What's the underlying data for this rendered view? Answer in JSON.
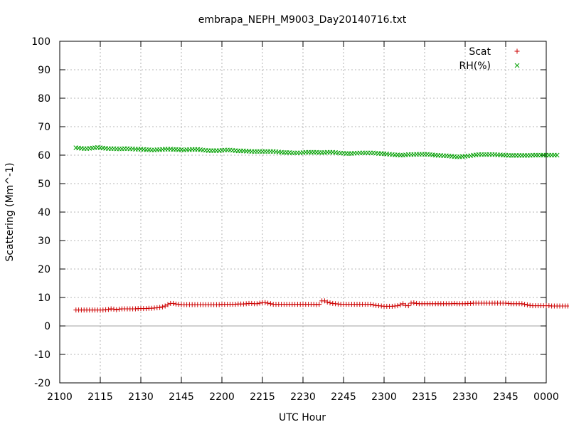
{
  "chart_data": {
    "type": "scatter",
    "title": "embrapa_NEPH_M9003_Day20140716.txt",
    "xlabel": "UTC Hour",
    "ylabel": "Scattering (Mm^-1)",
    "xlim": [
      0,
      180
    ],
    "ylim": [
      -20,
      100
    ],
    "x_ticks": [
      0,
      15,
      30,
      45,
      60,
      75,
      90,
      105,
      120,
      135,
      150,
      165,
      180
    ],
    "x_tick_labels": [
      "2100",
      "2115",
      "2130",
      "2145",
      "2200",
      "2215",
      "2230",
      "2245",
      "2300",
      "2315",
      "2330",
      "2345",
      "0000"
    ],
    "y_ticks": [
      -20,
      -10,
      0,
      10,
      20,
      30,
      40,
      50,
      60,
      70,
      80,
      90,
      100
    ],
    "grid": true,
    "zero_line": true,
    "legend_position": "top-right",
    "series": [
      {
        "name": "Scat",
        "marker": "plus",
        "color": "#cc0000",
        "x_start": 6,
        "x_step": 1,
        "values": [
          5.6,
          5.6,
          5.6,
          5.6,
          5.6,
          5.6,
          5.6,
          5.6,
          5.6,
          5.6,
          5.6,
          5.7,
          5.8,
          6.0,
          5.9,
          5.7,
          5.9,
          6.0,
          6.0,
          6.0,
          6.0,
          6.0,
          6.0,
          6.1,
          6.1,
          6.1,
          6.1,
          6.2,
          6.2,
          6.3,
          6.4,
          6.5,
          6.7,
          7.0,
          7.5,
          7.9,
          7.9,
          7.7,
          7.6,
          7.5,
          7.5,
          7.5,
          7.5,
          7.5,
          7.5,
          7.5,
          7.5,
          7.5,
          7.5,
          7.5,
          7.5,
          7.5,
          7.5,
          7.5,
          7.6,
          7.6,
          7.6,
          7.6,
          7.6,
          7.6,
          7.7,
          7.7,
          7.7,
          7.8,
          7.9,
          7.9,
          7.8,
          7.8,
          8.0,
          8.2,
          8.2,
          8.0,
          7.8,
          7.6,
          7.6,
          7.6,
          7.6,
          7.6,
          7.6,
          7.6,
          7.6,
          7.6,
          7.6,
          7.6,
          7.6,
          7.6,
          7.6,
          7.6,
          7.6,
          7.5,
          7.6,
          8.8,
          8.8,
          8.4,
          8.1,
          7.9,
          7.8,
          7.7,
          7.6,
          7.6,
          7.6,
          7.6,
          7.6,
          7.6,
          7.6,
          7.6,
          7.6,
          7.6,
          7.6,
          7.6,
          7.4,
          7.2,
          7.1,
          7.0,
          6.9,
          6.9,
          6.9,
          6.9,
          7.0,
          7.1,
          7.4,
          7.8,
          7.2,
          7.1,
          8.0,
          8.1,
          7.9,
          7.8,
          7.8,
          7.8,
          7.8,
          7.8,
          7.8,
          7.8,
          7.8,
          7.8,
          7.8,
          7.8,
          7.8,
          7.8,
          7.9,
          7.8,
          7.8,
          7.8,
          7.8,
          7.9,
          7.9,
          8.0,
          8.0,
          8.0,
          8.0,
          8.0,
          8.0,
          8.0,
          8.0,
          8.0,
          8.0,
          8.0,
          8.0,
          8.0,
          7.9,
          7.8,
          7.8,
          7.8,
          7.8,
          7.8,
          7.6,
          7.4,
          7.2,
          7.1,
          7.1,
          7.1,
          7.1,
          7.1,
          7.1,
          7.1,
          7.0,
          7.0,
          7.0,
          7.0,
          7.0,
          7.0,
          7.0
        ]
      },
      {
        "name": "RH(%)",
        "marker": "cross",
        "color": "#00a000",
        "x_start": 6,
        "x_step": 1,
        "values": [
          62.6,
          62.5,
          62.4,
          62.3,
          62.3,
          62.4,
          62.5,
          62.6,
          62.7,
          62.6,
          62.5,
          62.4,
          62.3,
          62.3,
          62.3,
          62.2,
          62.2,
          62.2,
          62.3,
          62.3,
          62.2,
          62.2,
          62.1,
          62.1,
          62.1,
          62.0,
          61.9,
          61.9,
          61.8,
          61.8,
          61.9,
          61.9,
          62.0,
          62.1,
          62.1,
          62.1,
          62.0,
          62.0,
          61.9,
          61.9,
          61.8,
          61.9,
          61.9,
          62.0,
          62.0,
          62.0,
          61.9,
          61.8,
          61.7,
          61.6,
          61.6,
          61.6,
          61.6,
          61.6,
          61.7,
          61.8,
          61.8,
          61.8,
          61.7,
          61.6,
          61.5,
          61.5,
          61.5,
          61.4,
          61.4,
          61.3,
          61.3,
          61.3,
          61.3,
          61.3,
          61.3,
          61.3,
          61.3,
          61.3,
          61.2,
          61.1,
          61.0,
          60.9,
          60.9,
          60.9,
          60.8,
          60.8,
          60.8,
          60.8,
          60.9,
          61.0,
          61.0,
          61.0,
          61.0,
          61.0,
          60.9,
          60.9,
          60.9,
          61.0,
          61.0,
          61.0,
          60.9,
          60.8,
          60.7,
          60.7,
          60.6,
          60.6,
          60.6,
          60.7,
          60.7,
          60.8,
          60.8,
          60.8,
          60.8,
          60.8,
          60.8,
          60.7,
          60.6,
          60.6,
          60.5,
          60.4,
          60.3,
          60.2,
          60.1,
          60.1,
          60.0,
          60.0,
          60.1,
          60.2,
          60.2,
          60.2,
          60.3,
          60.3,
          60.3,
          60.3,
          60.3,
          60.2,
          60.1,
          60.0,
          59.9,
          59.9,
          59.8,
          59.8,
          59.7,
          59.6,
          59.5,
          59.4,
          59.4,
          59.5,
          59.6,
          59.7,
          59.8,
          60.0,
          60.1,
          60.2,
          60.2,
          60.2,
          60.2,
          60.2,
          60.2,
          60.2,
          60.1,
          60.1,
          60.0,
          60.0,
          59.9,
          59.9,
          59.9,
          59.9,
          59.9,
          59.9,
          59.9,
          59.9,
          59.9,
          60.0,
          60.0,
          60.0,
          60.0,
          60.0,
          60.0,
          60.0,
          60.0,
          60.0,
          60.0
        ]
      }
    ]
  }
}
